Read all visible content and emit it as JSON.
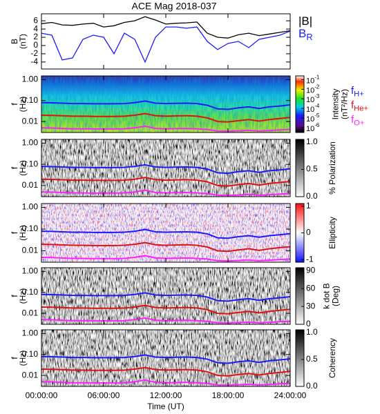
{
  "chart_data": [
    {
      "type": "line",
      "title": "ACE Mag 2018-037",
      "ylabel": [
        "B",
        "(nT)"
      ],
      "x": [
        0,
        1,
        2,
        3,
        4,
        5,
        6,
        7,
        8,
        9,
        10,
        11,
        12,
        13,
        14,
        15,
        16,
        17,
        18,
        19,
        20,
        21,
        22,
        23,
        24
      ],
      "xlim": [
        0,
        24
      ],
      "ylim": [
        -5.7,
        7.7
      ],
      "yticks": [
        -4,
        -2,
        0,
        2,
        4,
        6
      ],
      "series": [
        {
          "name": "|B|",
          "color": "#000000",
          "values": [
            5.3,
            5.6,
            5.0,
            4.9,
            5.2,
            5.4,
            4.5,
            4.8,
            5.6,
            6.0,
            7.0,
            6.2,
            5.2,
            5.4,
            5.5,
            5.7,
            3.0,
            2.0,
            1.8,
            2.6,
            3.0,
            2.4,
            2.8,
            3.2,
            3.6
          ]
        },
        {
          "name": "B",
          "subscript": "R",
          "color": "#1a1aff",
          "values": [
            3.0,
            2.5,
            -3.5,
            -3.0,
            1.5,
            2.5,
            2.0,
            -2.0,
            3.0,
            1.5,
            -4.0,
            2.0,
            4.5,
            4.5,
            4.2,
            4.5,
            1.0,
            -1.0,
            0.5,
            1.0,
            -0.5,
            1.5,
            2.0,
            2.5,
            3.5
          ]
        }
      ]
    },
    {
      "type": "spectrogram",
      "ylabel": [
        "f",
        "(Hz)"
      ],
      "x": [
        0,
        1,
        2,
        3,
        4,
        5,
        6,
        7,
        8,
        9,
        10,
        11,
        12,
        13,
        14,
        15,
        16,
        17,
        18,
        19,
        20,
        21,
        22,
        23,
        24
      ],
      "xlim": [
        0,
        24
      ],
      "ylim": [
        0.003,
        1.5
      ],
      "log_y": true,
      "yticks": [
        {
          "value": 1,
          "label": "1.00"
        },
        {
          "value": 0.1,
          "label": "0.10"
        },
        {
          "value": 0.01,
          "label": "0.01"
        }
      ],
      "colormap": "rainbow",
      "series": [
        {
          "name": "f",
          "subscript": "H+",
          "color": "#1a1aff",
          "values": [
            0.08,
            0.078,
            0.075,
            0.072,
            0.072,
            0.07,
            0.07,
            0.07,
            0.072,
            0.08,
            0.095,
            0.075,
            0.072,
            0.074,
            0.075,
            0.072,
            0.06,
            0.04,
            0.038,
            0.045,
            0.05,
            0.042,
            0.05,
            0.055,
            0.062
          ]
        },
        {
          "name": "f",
          "subscript": "He+",
          "color": "#e01010",
          "values": [
            0.02,
            0.0195,
            0.0188,
            0.018,
            0.018,
            0.0175,
            0.0175,
            0.0175,
            0.018,
            0.02,
            0.024,
            0.019,
            0.018,
            0.0185,
            0.019,
            0.018,
            0.015,
            0.01,
            0.0095,
            0.011,
            0.0125,
            0.0105,
            0.0125,
            0.014,
            0.0155
          ]
        },
        {
          "name": "f",
          "subscript": "O+",
          "color": "#ff20ff",
          "values": [
            0.005,
            0.0049,
            0.0047,
            0.0045,
            0.0045,
            0.0044,
            0.0044,
            0.0044,
            0.0045,
            0.005,
            0.006,
            0.0047,
            0.0045,
            0.0046,
            0.0047,
            0.0045,
            0.0042,
            0.0035,
            0.0034,
            0.0036,
            0.0038,
            0.0035,
            0.0037,
            0.004,
            0.0042
          ]
        }
      ],
      "colorbar": {
        "label": [
          "Intensity",
          "(nT²/Hz)"
        ],
        "lim": [
          3e-07,
          0.25
        ],
        "log": true,
        "ticks": [
          {
            "value": 0.1,
            "label": "10",
            "exponent": "-1"
          },
          {
            "value": 0.01,
            "label": "10",
            "exponent": "-2"
          },
          {
            "value": 0.001,
            "label": "10",
            "exponent": "-3"
          },
          {
            "value": 0.0001,
            "label": "10",
            "exponent": "-4"
          },
          {
            "value": 1e-05,
            "label": "10",
            "exponent": "-5"
          },
          {
            "value": 1e-06,
            "label": "10",
            "exponent": "-6"
          }
        ]
      }
    },
    {
      "type": "spectrogram",
      "ylabel": [
        "f",
        "(Hz)"
      ],
      "xlim": [
        0,
        24
      ],
      "ylim": [
        0.003,
        1.5
      ],
      "log_y": true,
      "yticks": [
        {
          "value": 1,
          "label": "1.00"
        },
        {
          "value": 0.1,
          "label": "0.10"
        },
        {
          "value": 0.01,
          "label": "0.01"
        }
      ],
      "colormap": "grey",
      "colorbar": {
        "label": [
          "% Polarization"
        ],
        "lim": [
          0,
          1.05
        ],
        "ticks": [
          {
            "value": 0,
            "label": "0.0"
          },
          {
            "value": 0.5,
            "label": "0.5"
          },
          {
            "value": 1,
            "label": "1.0"
          }
        ]
      }
    },
    {
      "type": "spectrogram",
      "ylabel": [
        "f",
        "(Hz)"
      ],
      "xlim": [
        0,
        24
      ],
      "ylim": [
        0.003,
        1.5
      ],
      "log_y": true,
      "yticks": [
        {
          "value": 1,
          "label": "1.00"
        },
        {
          "value": 0.1,
          "label": "0.10"
        },
        {
          "value": 0.01,
          "label": "0.01"
        }
      ],
      "colormap": "bwr",
      "colorbar": {
        "label": [
          "Ellipticity"
        ],
        "lim": [
          -1.1,
          1.1
        ],
        "ticks": [
          -1,
          0,
          1
        ]
      }
    },
    {
      "type": "spectrogram",
      "ylabel": [
        "f",
        "(Hz)"
      ],
      "xlim": [
        0,
        24
      ],
      "ylim": [
        0.003,
        1.5
      ],
      "log_y": true,
      "yticks": [
        {
          "value": 1,
          "label": "1.00"
        },
        {
          "value": 0.1,
          "label": "0.10"
        },
        {
          "value": 0.01,
          "label": "0.01"
        }
      ],
      "colormap": "grey",
      "colorbar": {
        "label": [
          "k dot B",
          "(Deg)"
        ],
        "lim": [
          0,
          95
        ],
        "ticks": [
          0,
          30,
          60,
          90
        ]
      }
    },
    {
      "type": "spectrogram",
      "ylabel": [
        "f",
        "(Hz)"
      ],
      "xlim": [
        0,
        24
      ],
      "ylim": [
        0.003,
        1.5
      ],
      "log_y": true,
      "yticks": [
        {
          "value": 1,
          "label": "1.00"
        },
        {
          "value": 0.1,
          "label": "0.10"
        },
        {
          "value": 0.01,
          "label": "0.01"
        }
      ],
      "colormap": "grey",
      "colorbar": {
        "label": [
          "Coherency"
        ],
        "lim": [
          0,
          1.05
        ],
        "ticks": [
          {
            "value": 0,
            "label": "0.0"
          },
          {
            "value": 0.5,
            "label": "0.5"
          },
          {
            "value": 1,
            "label": "1.0"
          }
        ]
      },
      "xticks": [
        {
          "value": 0,
          "label": "00:00:00"
        },
        {
          "value": 6,
          "label": "06:00:00"
        },
        {
          "value": 12,
          "label": "12:00:00"
        },
        {
          "value": 18,
          "label": "18:00:00"
        },
        {
          "value": 24,
          "label": "24:00:00"
        }
      ],
      "xlabel": "Time (UT)"
    }
  ]
}
